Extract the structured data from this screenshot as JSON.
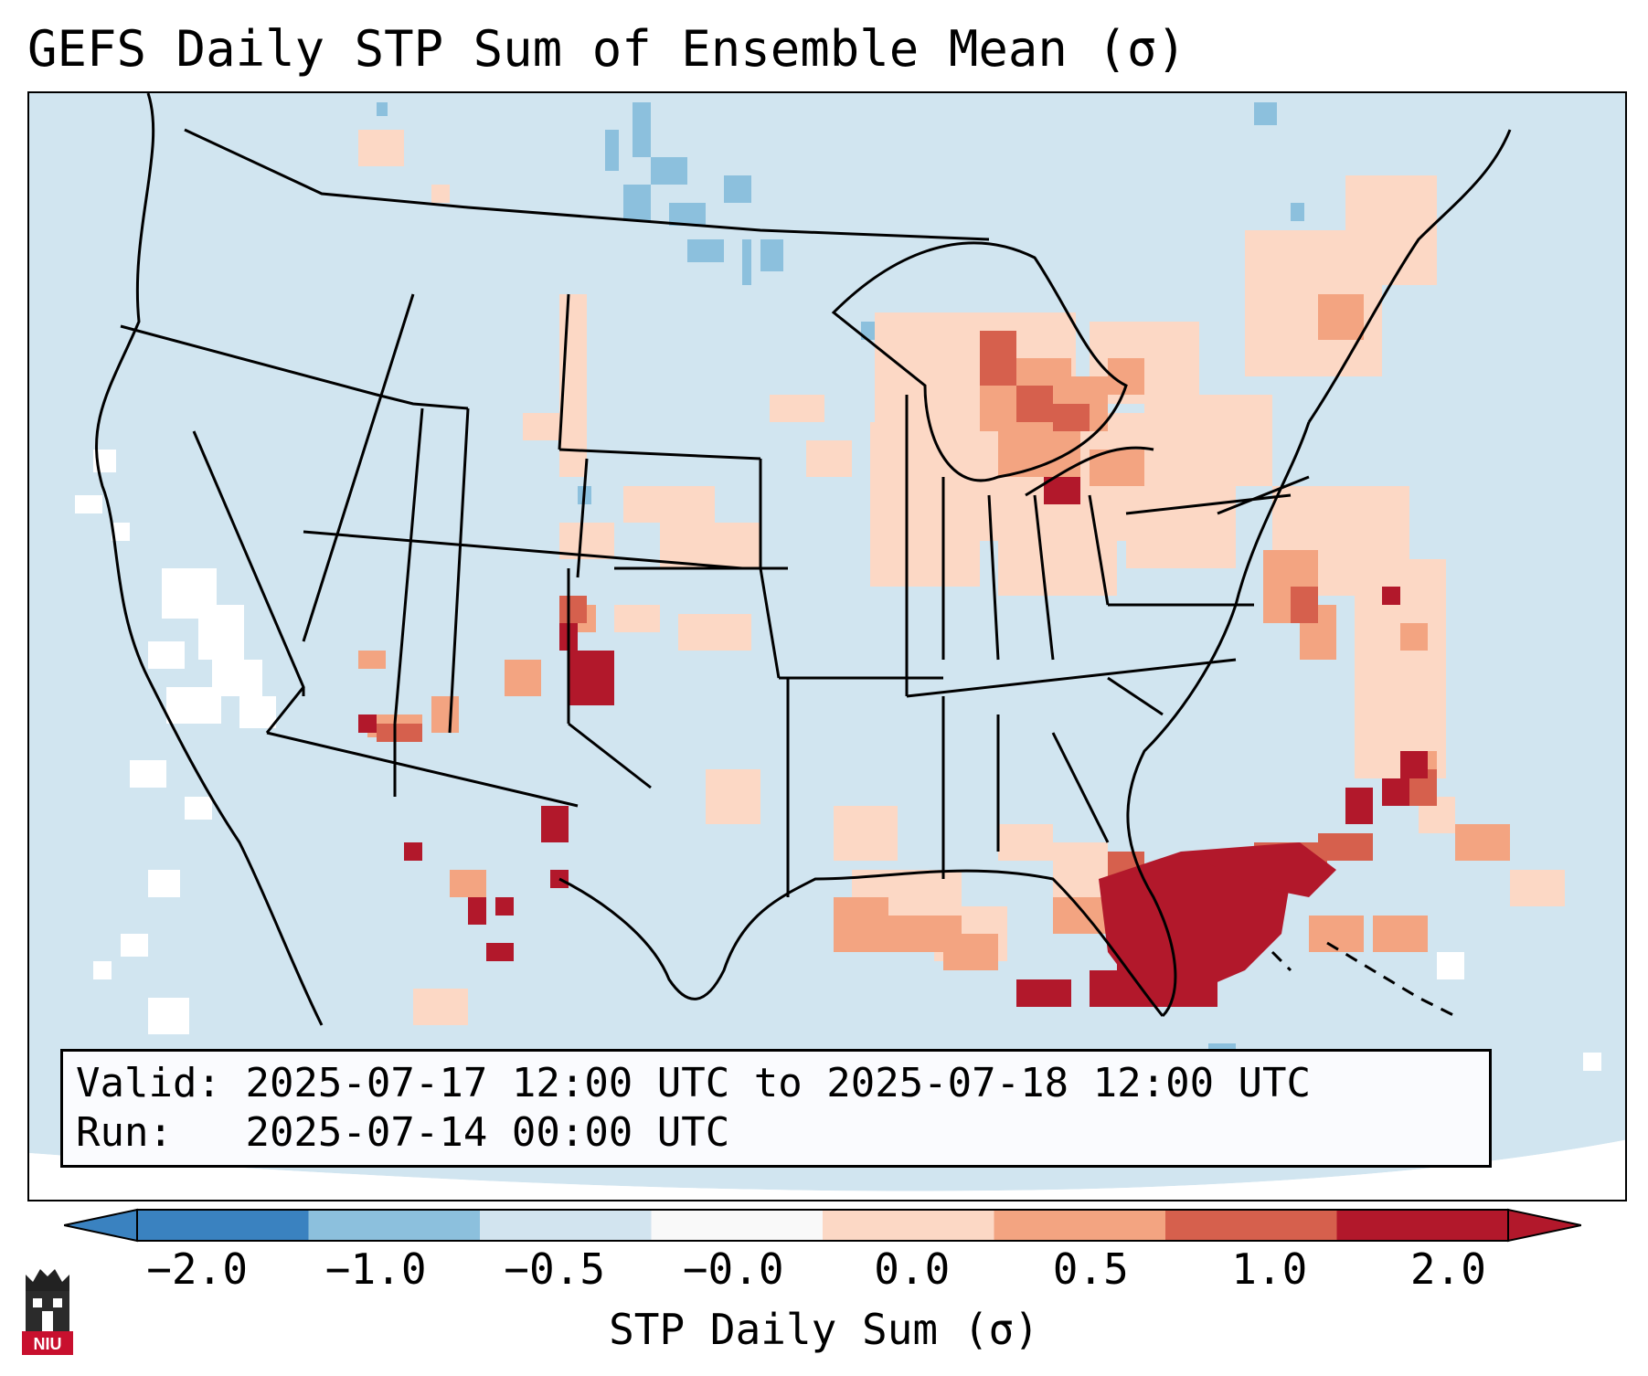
{
  "title": "GEFS Daily STP Sum of Ensemble Mean (σ)",
  "info": {
    "valid_label": "Valid:",
    "valid_text": "2025-07-17 12:00 UTC to 2025-07-18 12:00 UTC",
    "run_label": "Run:",
    "run_text": "2025-07-14 00:00 UTC"
  },
  "colorbar": {
    "ticks": [
      "−2.0",
      "−1.0",
      "−0.5",
      "−0.0",
      "0.0",
      "0.5",
      "1.0",
      "2.0"
    ],
    "label": "STP Daily Sum (σ)",
    "colors": [
      "#3a82c0",
      "#8cc0dd",
      "#d2e4ef",
      "#f9f9f9",
      "#fcd8c5",
      "#f3a481",
      "#d6604d",
      "#b2182b"
    ]
  },
  "map_colors": {
    "background": "#d1e5f0",
    "outside": "#ffffff",
    "border": "#000000"
  },
  "logo_text": "NIU"
}
